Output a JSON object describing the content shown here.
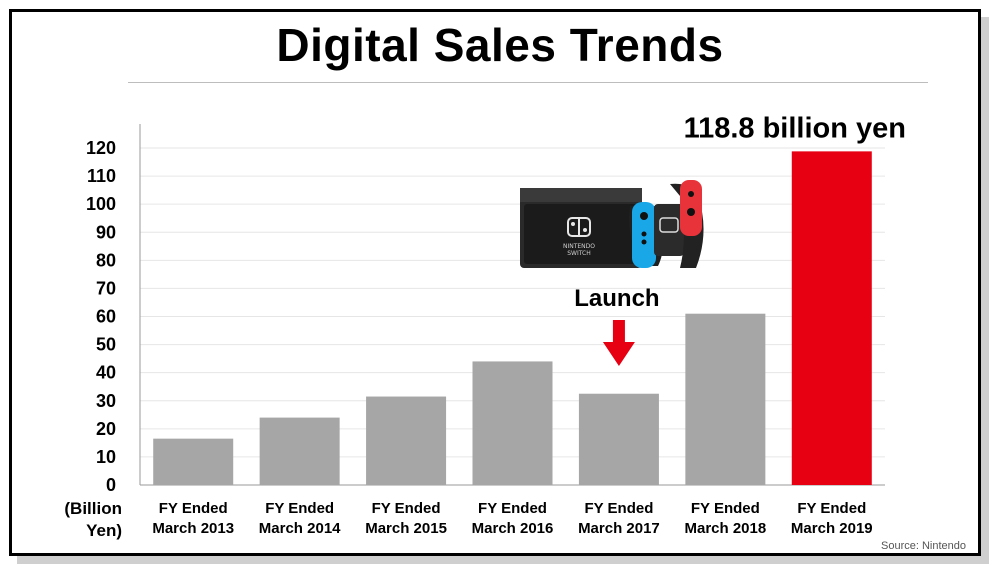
{
  "page": {
    "title": "Digital Sales Trends",
    "source": "Source: Nintendo"
  },
  "chart_data": {
    "type": "bar",
    "title": "Digital Sales Trends",
    "ylabel": "(Billion Yen)",
    "ylabel_lines": [
      "(Billion",
      "Yen)"
    ],
    "ylim": [
      0,
      120
    ],
    "yticks": [
      0,
      10,
      20,
      30,
      40,
      50,
      60,
      70,
      80,
      90,
      100,
      110,
      120
    ],
    "grid": true,
    "categories": [
      [
        "FY Ended",
        "March 2013"
      ],
      [
        "FY Ended",
        "March 2014"
      ],
      [
        "FY Ended",
        "March 2015"
      ],
      [
        "FY Ended",
        "March 2016"
      ],
      [
        "FY Ended",
        "March 2017"
      ],
      [
        "FY Ended",
        "March 2018"
      ],
      [
        "FY Ended",
        "March 2019"
      ]
    ],
    "values": [
      16.5,
      24,
      31.5,
      44,
      32.5,
      61,
      118.8
    ],
    "colors": [
      "#a6a6a6",
      "#a6a6a6",
      "#a6a6a6",
      "#a6a6a6",
      "#a6a6a6",
      "#a6a6a6",
      "#e60012"
    ],
    "annotations": [
      {
        "text": "118.8 billion yen",
        "category_index": 6
      },
      {
        "text": "Launch",
        "category_index": 4,
        "arrow_color": "#e60012"
      }
    ],
    "image": {
      "name": "nintendo-switch-console",
      "depicts": "Nintendo Switch console with joy-con controllers",
      "brand_text": "NINTENDO SWITCH"
    }
  }
}
